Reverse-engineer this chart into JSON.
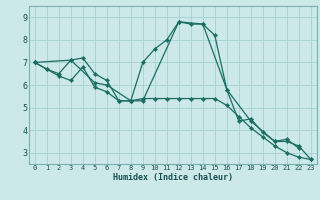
{
  "title": "",
  "xlabel": "Humidex (Indice chaleur)",
  "bg_color": "#cce8e8",
  "grid_color": "#aad4d4",
  "line_color": "#1a6e62",
  "xlim": [
    -0.5,
    23.5
  ],
  "ylim": [
    2.5,
    9.5
  ],
  "yticks": [
    3,
    4,
    5,
    6,
    7,
    8,
    9
  ],
  "xticks": [
    0,
    1,
    2,
    3,
    4,
    5,
    6,
    7,
    8,
    9,
    10,
    11,
    12,
    13,
    14,
    15,
    16,
    17,
    18,
    19,
    20,
    21,
    22,
    23
  ],
  "lines": [
    {
      "x": [
        0,
        1,
        2,
        3,
        4,
        5,
        6,
        7,
        8,
        9,
        10,
        11,
        12,
        13,
        14,
        15,
        16,
        17,
        18,
        19,
        20,
        21,
        22
      ],
      "y": [
        7.0,
        6.7,
        6.5,
        7.1,
        7.2,
        6.5,
        6.2,
        5.3,
        5.3,
        7.0,
        7.6,
        8.0,
        8.8,
        8.7,
        8.7,
        8.2,
        5.8,
        4.4,
        4.5,
        3.9,
        3.5,
        3.6,
        3.2
      ]
    },
    {
      "x": [
        0,
        1,
        2,
        3,
        4,
        5,
        6,
        7,
        8,
        9,
        10,
        11,
        12,
        13,
        14,
        15,
        16,
        17,
        18,
        19,
        20,
        21,
        22,
        23
      ],
      "y": [
        7.0,
        6.7,
        6.4,
        6.2,
        6.8,
        5.9,
        5.7,
        5.3,
        5.3,
        5.4,
        5.4,
        5.4,
        5.4,
        5.4,
        5.4,
        5.4,
        5.1,
        4.6,
        4.1,
        3.7,
        3.3,
        3.0,
        2.8,
        2.7
      ]
    },
    {
      "x": [
        0,
        3,
        5,
        6,
        8,
        9,
        12,
        14,
        16,
        18,
        20,
        21,
        22,
        23
      ],
      "y": [
        7.0,
        7.1,
        6.1,
        6.0,
        5.3,
        5.3,
        8.8,
        8.7,
        5.8,
        4.4,
        3.5,
        3.5,
        3.3,
        2.7
      ]
    }
  ]
}
